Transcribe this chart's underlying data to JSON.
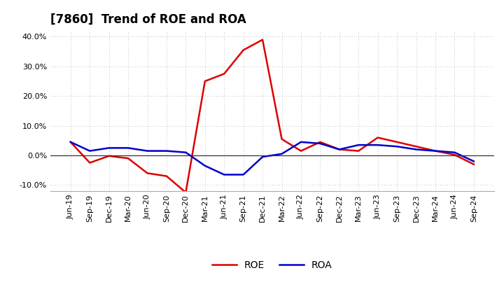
{
  "title": "[7860]  Trend of ROE and ROA",
  "labels": [
    "Jun-19",
    "Sep-19",
    "Dec-19",
    "Mar-20",
    "Jun-20",
    "Sep-20",
    "Dec-20",
    "Mar-21",
    "Jun-21",
    "Sep-21",
    "Dec-21",
    "Mar-22",
    "Jun-22",
    "Sep-22",
    "Dec-22",
    "Mar-23",
    "Jun-23",
    "Sep-23",
    "Dec-23",
    "Mar-24",
    "Jun-24",
    "Sep-24"
  ],
  "ROE": [
    4.5,
    -2.5,
    -0.2,
    -1.0,
    -6.0,
    -7.0,
    -12.5,
    25.0,
    27.5,
    35.5,
    39.0,
    5.5,
    1.5,
    4.5,
    2.0,
    1.5,
    6.0,
    4.5,
    3.0,
    1.5,
    0.2,
    -3.0
  ],
  "ROA": [
    4.5,
    1.5,
    2.5,
    2.5,
    1.5,
    1.5,
    1.0,
    -3.5,
    -6.5,
    -6.5,
    -0.5,
    0.5,
    4.5,
    4.0,
    2.0,
    3.5,
    3.5,
    3.0,
    2.0,
    1.5,
    1.0,
    -2.0
  ],
  "ROE_color": "#dd0000",
  "ROA_color": "#0000cc",
  "ylim": [
    -12,
    42
  ],
  "yticks": [
    -10,
    0,
    10,
    20,
    30,
    40
  ],
  "bg_color": "#ffffff",
  "grid_color": "#aaaaaa",
  "title_fontsize": 12,
  "legend_fontsize": 10,
  "tick_fontsize": 8
}
